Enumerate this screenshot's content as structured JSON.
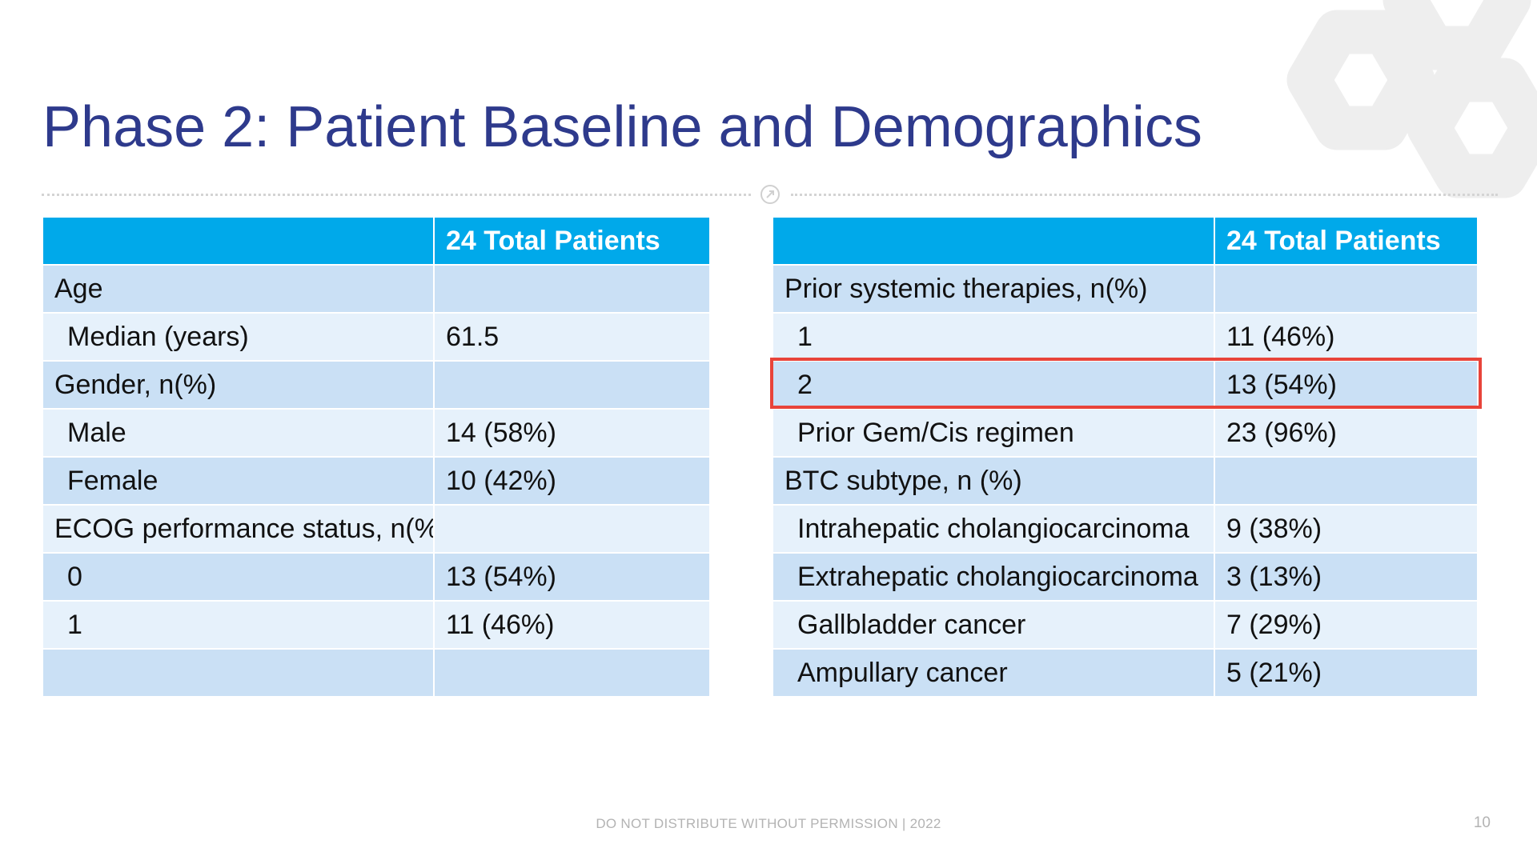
{
  "slide": {
    "title": "Phase 2: Patient Baseline and Demographics",
    "footer": "DO NOT DISTRIBUTE WITHOUT PERMISSION | 2022",
    "page_number": "10"
  },
  "colors": {
    "title": "#2e3a8c",
    "header_fill": "#00a9ea",
    "row_dark": "#cae0f5",
    "row_light": "#e6f1fb",
    "highlight_border": "#e8443a",
    "watermark": "#eeeeee"
  },
  "icons": {
    "logo": "hexagon-logo-watermark",
    "divider_badge": "circle-arrow-icon"
  },
  "left_table": {
    "header": [
      "",
      "24 Total Patients"
    ],
    "rows": [
      [
        "Age",
        ""
      ],
      [
        "Median (years)",
        "61.5"
      ],
      [
        "Gender, n(%)",
        ""
      ],
      [
        "Male",
        "14 (58%)"
      ],
      [
        "Female",
        "10 (42%)"
      ],
      [
        "ECOG performance status, n(%)",
        ""
      ],
      [
        "0",
        "13 (54%)"
      ],
      [
        "1",
        "11 (46%)"
      ],
      [
        "",
        ""
      ]
    ]
  },
  "right_table": {
    "header": [
      "",
      "24 Total Patients"
    ],
    "rows": [
      [
        "Prior systemic therapies, n(%)",
        ""
      ],
      [
        "1",
        "11 (46%)"
      ],
      [
        "2",
        "13 (54%)"
      ],
      [
        "Prior Gem/Cis regimen",
        "23 (96%)"
      ],
      [
        "BTC subtype, n (%)",
        ""
      ],
      [
        "Intrahepatic cholangiocarcinoma",
        "9 (38%)"
      ],
      [
        "Extrahepatic cholangiocarcinoma",
        "3 (13%)"
      ],
      [
        "Gallbladder cancer",
        "7 (29%)"
      ],
      [
        "Ampullary cancer",
        "5 (21%)"
      ]
    ]
  }
}
